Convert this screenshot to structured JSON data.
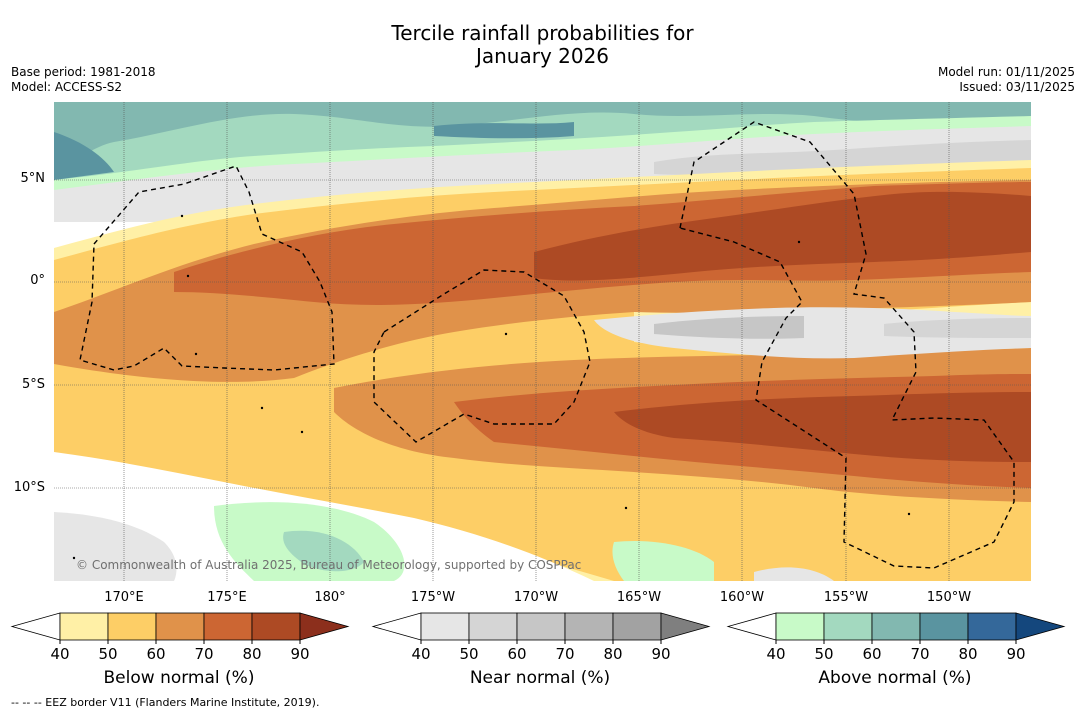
{
  "title_line1": "Tercile rainfall probabilities for",
  "title_line2": "January 2026",
  "base_period": "Base period: 1981-2018",
  "model": "Model: ACCESS-S2",
  "model_run": "Model run: 01/11/2025",
  "issued": "Issued: 03/11/2025",
  "copyright": "© Commonwealth of Australia 2025, Bureau of Meteorology, supported by COSPPac",
  "footnote": "--  --  -- EEZ border V11 (Flanders Marine Institute, 2019).",
  "lat_labels": [
    "5°N",
    "0°",
    "5°S",
    "10°S"
  ],
  "lon_labels": [
    "170°E",
    "175°E",
    "180°",
    "175°W",
    "170°W",
    "165°W",
    "160°W",
    "155°W",
    "150°W"
  ],
  "colorbars": [
    {
      "title": "Below normal (%)",
      "ticks": [
        "40",
        "50",
        "60",
        "70",
        "80",
        "90"
      ],
      "colors": [
        "#ffffff",
        "#fff0a6",
        "#fdce66",
        "#e0924a",
        "#cc6633",
        "#ad4a24",
        "#8c2f1c"
      ]
    },
    {
      "title": "Near normal (%)",
      "ticks": [
        "40",
        "50",
        "60",
        "70",
        "80",
        "90"
      ],
      "colors": [
        "#ffffff",
        "#e6e6e6",
        "#d5d5d5",
        "#c6c6c6",
        "#b4b4b4",
        "#a2a2a2",
        "#7f7f7f"
      ]
    },
    {
      "title": "Above normal (%)",
      "ticks": [
        "40",
        "50",
        "60",
        "70",
        "80",
        "90"
      ],
      "colors": [
        "#ffffff",
        "#c8fac8",
        "#a3d9bf",
        "#82b8b0",
        "#5a94a0",
        "#34689a",
        "#14477d"
      ]
    }
  ]
}
